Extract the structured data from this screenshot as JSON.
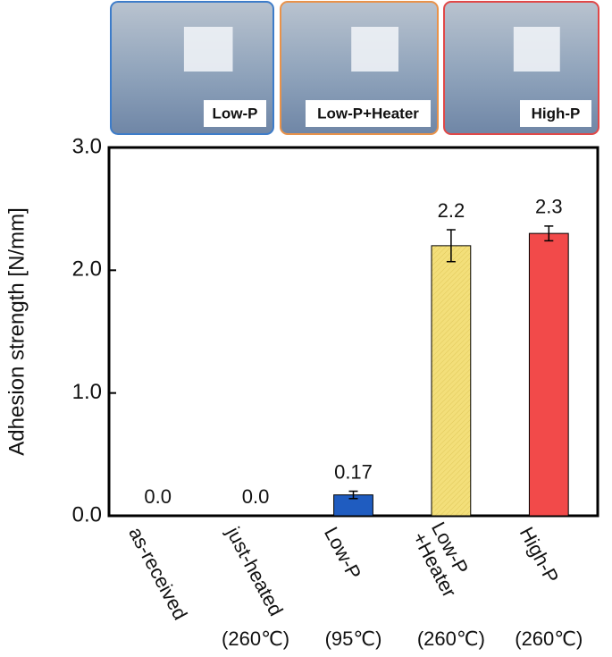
{
  "chart_data": {
    "type": "bar",
    "y_label": "Adhesion strength [N/mm]",
    "categories": [
      [
        "as-received"
      ],
      [
        "just-heated"
      ],
      [
        "Low-P"
      ],
      [
        "Low-P",
        "+Heater"
      ],
      [
        "High-P"
      ]
    ],
    "sublabels": [
      null,
      "(260℃)",
      "(95℃)",
      "(260℃)",
      "(260℃)"
    ],
    "values": [
      0,
      0,
      0.17,
      2.2,
      2.3
    ],
    "value_labels": [
      "0.0",
      "0.0",
      "0.17",
      "2.2",
      "2.3"
    ],
    "errors": [
      0,
      0,
      0.03,
      0.13,
      0.06
    ],
    "colors": [
      "#ffffff",
      "#ffffff",
      "#1f5cc0",
      "#f3df7a",
      "#f24a4a"
    ],
    "ylim": [
      0,
      3
    ],
    "yticks": [
      {
        "value": 0,
        "label": "0.0"
      },
      {
        "value": 1,
        "label": "1.0"
      },
      {
        "value": 2,
        "label": "2.0"
      },
      {
        "value": 3,
        "label": "3.0"
      }
    ],
    "insets": [
      {
        "label": "Low-P",
        "color": "#3d7cc9"
      },
      {
        "label": "Low-P+Heater",
        "color": "#e8924a"
      },
      {
        "label": "High-P",
        "color": "#e04848"
      }
    ]
  }
}
